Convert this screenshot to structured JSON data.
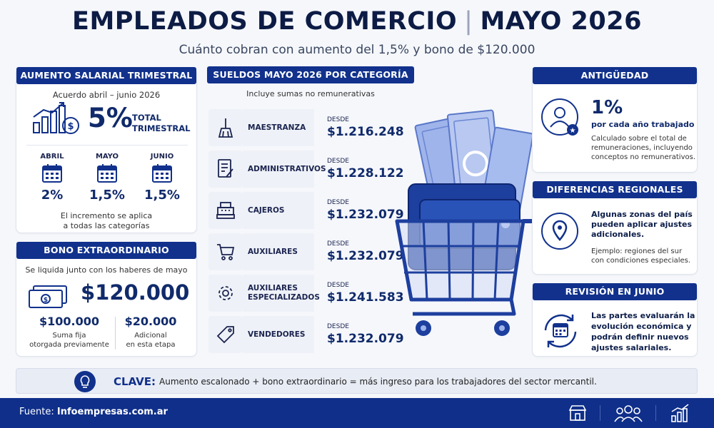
{
  "header": {
    "title_left": "EMPLEADOS DE COMERCIO",
    "title_sep": "|",
    "title_right": "MAYO 2026",
    "subtitle": "Cuánto cobran con aumento del 1,5% y bono de $120.000"
  },
  "aumento": {
    "header": "AUMENTO SALARIAL TRIMESTRAL",
    "subtitle": "Acuerdo abril – junio 2026",
    "total_pct": "5%",
    "total_label_1": "TOTAL",
    "total_label_2": "TRIMESTRAL",
    "months": [
      {
        "name": "ABRIL",
        "pct": "2%"
      },
      {
        "name": "MAYO",
        "pct": "1,5%"
      },
      {
        "name": "JUNIO",
        "pct": "1,5%"
      }
    ],
    "note_1": "El incremento se aplica",
    "note_2": "a todas las categorías"
  },
  "bono": {
    "header": "BONO EXTRAORDINARIO",
    "subtitle": "Se liquida junto con los haberes de mayo",
    "total": "$120.000",
    "parts": [
      {
        "amount": "$100.000",
        "desc_1": "Suma fija",
        "desc_2": "otorgada previamente"
      },
      {
        "amount": "$20.000",
        "desc_1": "Adicional",
        "desc_2": "en esta etapa"
      }
    ]
  },
  "sueldos": {
    "header": "SUELDOS MAYO 2026 POR CATEGORÍA",
    "subtitle": "Incluye sumas no remunerativas",
    "desde_label": "DESDE",
    "rows": [
      {
        "icon": "broom-icon",
        "category_1": "MAESTRANZA",
        "category_2": "",
        "amount": "$1.216.248"
      },
      {
        "icon": "document-icon",
        "category_1": "ADMINISTRATIVOS",
        "category_2": "",
        "amount": "$1.228.122"
      },
      {
        "icon": "cash-register-icon",
        "category_1": "CAJEROS",
        "category_2": "",
        "amount": "$1.232.079"
      },
      {
        "icon": "cart-icon",
        "category_1": "AUXILIARES",
        "category_2": "",
        "amount": "$1.232.079"
      },
      {
        "icon": "gear-icon",
        "category_1": "AUXILIARES",
        "category_2": "ESPECIALIZADOS",
        "amount": "$1.241.583"
      },
      {
        "icon": "tag-icon",
        "category_1": "VENDEDORES",
        "category_2": "",
        "amount": "$1.232.079"
      }
    ]
  },
  "antiguedad": {
    "header": "ANTIGÜEDAD",
    "big": "1%",
    "label": "por cada año trabajado",
    "desc": "Calculado sobre el total de remuneraciones, incluyendo conceptos no remunerativos."
  },
  "regional": {
    "header": "DIFERENCIAS REGIONALES",
    "text": "Algunas zonas del país pueden aplicar ajustes adicionales.",
    "desc": "Ejemplo: regiones del sur con condiciones especiales."
  },
  "revision": {
    "header": "REVISIÓN EN JUNIO",
    "text": "Las partes evaluarán la evolución económica y podrán definir nuevos ajustes salariales."
  },
  "clave": {
    "label": "CLAVE:",
    "text": "Aumento escalonado + bono extraordinario = más ingreso para los trabajadores del sector mercantil."
  },
  "footer": {
    "source_label": "Fuente:",
    "source_value": "Infoempresas.com.ar"
  },
  "colors": {
    "navy": "#102a6b",
    "header_blue": "#11318c",
    "footer_blue": "#0f2f8a"
  }
}
